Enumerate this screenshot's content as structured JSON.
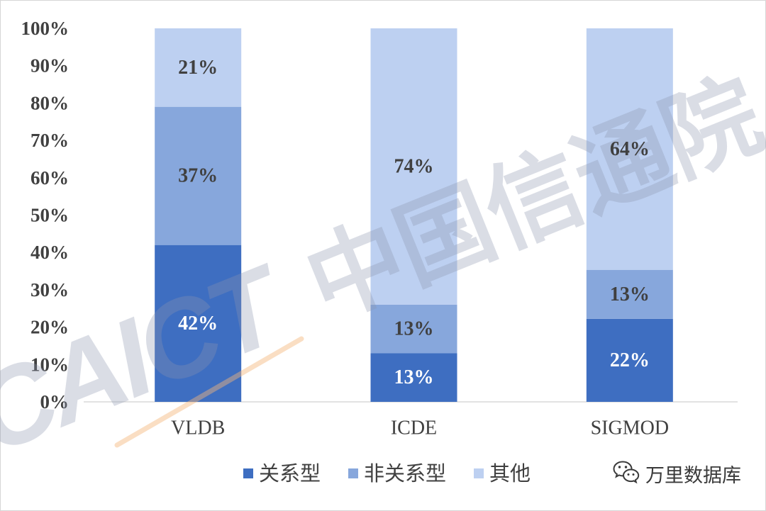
{
  "chart_data": {
    "type": "bar",
    "stacking": "percent",
    "categories": [
      "VLDB",
      "ICDE",
      "SIGMOD"
    ],
    "series": [
      {
        "name": "关系型",
        "values": [
          42,
          13,
          22
        ],
        "labels": [
          "42%",
          "13%",
          "22%"
        ],
        "color": "#3E6EC1",
        "label_color": "#FFFFFF"
      },
      {
        "name": "非关系型",
        "values": [
          37,
          13,
          13
        ],
        "labels": [
          "37%",
          "13%",
          "13%"
        ],
        "color": "#87A7DC",
        "label_color": "#404040"
      },
      {
        "name": "其他",
        "values": [
          21,
          74,
          64
        ],
        "labels": [
          "21%",
          "74%",
          "64%"
        ],
        "color": "#BDD0F1",
        "label_color": "#404040"
      }
    ],
    "ylim": [
      0,
      100
    ],
    "yticks": [
      0,
      10,
      20,
      30,
      40,
      50,
      60,
      70,
      80,
      90,
      100
    ],
    "ytick_labels": [
      "0%",
      "10%",
      "20%",
      "30%",
      "40%",
      "50%",
      "60%",
      "70%",
      "80%",
      "90%",
      "100%"
    ],
    "grid": false,
    "legend": "bottom"
  },
  "watermark": {
    "latin": "CAICT",
    "chinese": "中国信通院",
    "color": "#8B96AE"
  },
  "branding": {
    "icon": "wechat-icon",
    "text": "万里数据库"
  }
}
